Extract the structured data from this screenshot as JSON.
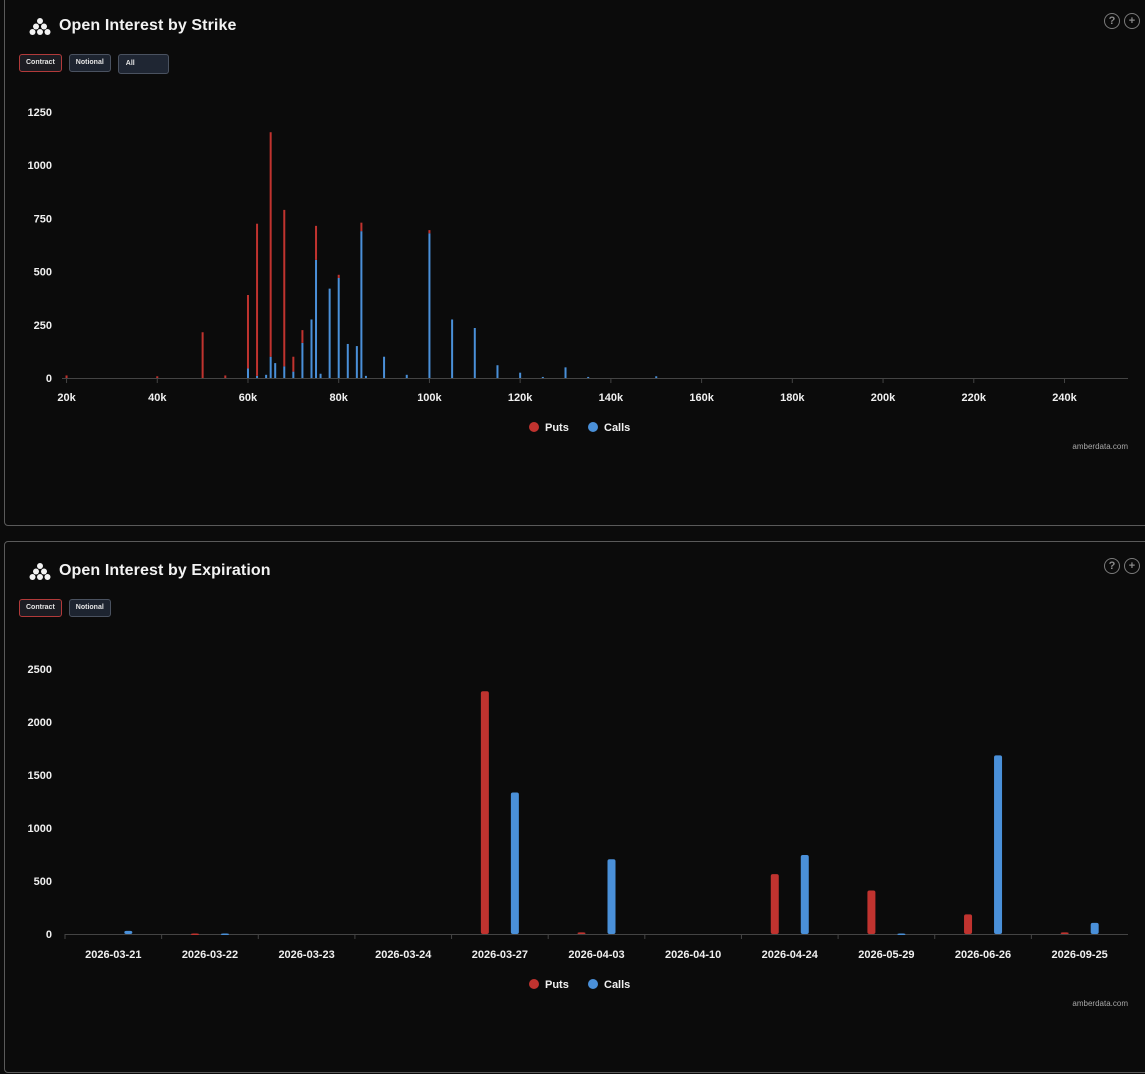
{
  "colors": {
    "puts": "#c0332f",
    "calls": "#4a90d9",
    "axis": "#444444"
  },
  "strike_panel": {
    "title": "Open Interest by Strike",
    "toggles": {
      "contract": "Contract",
      "notional": "Notional",
      "select_value": "All"
    },
    "icons": {
      "help": "?",
      "add": "+"
    },
    "credit": "amberdata.com",
    "legend": {
      "puts": "Puts",
      "calls": "Calls"
    }
  },
  "exp_panel": {
    "title": "Open Interest by Expiration",
    "toggles": {
      "contract": "Contract",
      "notional": "Notional"
    },
    "icons": {
      "help": "?",
      "add": "+"
    },
    "credit": "amberdata.com",
    "legend": {
      "puts": "Puts",
      "calls": "Calls"
    }
  },
  "chart_data": [
    {
      "type": "bar",
      "title": "Open Interest by Strike",
      "xlabel": "",
      "ylabel": "",
      "xlim": [
        19000,
        254000
      ],
      "ylim": [
        0,
        1250
      ],
      "x_ticks": [
        20000,
        40000,
        60000,
        80000,
        100000,
        120000,
        140000,
        160000,
        180000,
        200000,
        220000,
        240000
      ],
      "x_tick_labels": [
        "20k",
        "40k",
        "60k",
        "80k",
        "100k",
        "120k",
        "140k",
        "160k",
        "180k",
        "200k",
        "220k",
        "240k"
      ],
      "y_ticks": [
        0,
        250,
        500,
        750,
        1000,
        1250
      ],
      "stacked": true,
      "strikes": [
        20000,
        40000,
        50000,
        55000,
        60000,
        62000,
        64000,
        65000,
        66000,
        68000,
        70000,
        72000,
        74000,
        75000,
        76000,
        78000,
        80000,
        82000,
        84000,
        85000,
        86000,
        90000,
        95000,
        100000,
        105000,
        110000,
        115000,
        120000,
        125000,
        130000,
        135000,
        150000
      ],
      "series": [
        {
          "name": "Calls",
          "values": [
            0,
            0,
            0,
            0,
            45,
            10,
            15,
            100,
            70,
            55,
            30,
            165,
            275,
            555,
            20,
            420,
            470,
            160,
            150,
            690,
            10,
            100,
            15,
            680,
            275,
            235,
            60,
            25,
            5,
            50,
            5,
            8
          ]
        },
        {
          "name": "Puts",
          "values": [
            12,
            8,
            215,
            12,
            345,
            715,
            0,
            1055,
            0,
            735,
            70,
            60,
            0,
            160,
            0,
            0,
            15,
            0,
            0,
            40,
            0,
            0,
            0,
            15,
            0,
            0,
            0,
            0,
            0,
            0,
            0,
            0
          ]
        }
      ],
      "legend": [
        "Puts",
        "Calls"
      ]
    },
    {
      "type": "bar",
      "title": "Open Interest by Expiration",
      "xlabel": "",
      "ylabel": "",
      "ylim": [
        0,
        2500
      ],
      "y_ticks": [
        0,
        500,
        1000,
        1500,
        2000,
        2500
      ],
      "categories": [
        "2026-03-21",
        "2026-03-22",
        "2026-03-23",
        "2026-03-24",
        "2026-03-27",
        "2026-04-03",
        "2026-04-10",
        "2026-04-24",
        "2026-05-29",
        "2026-06-26",
        "2026-09-25"
      ],
      "series": [
        {
          "name": "Puts",
          "values": [
            0,
            5,
            0,
            0,
            2290,
            15,
            0,
            565,
            410,
            185,
            15
          ]
        },
        {
          "name": "Calls",
          "values": [
            30,
            5,
            0,
            0,
            1335,
            705,
            0,
            745,
            5,
            1685,
            105
          ]
        }
      ],
      "legend": [
        "Puts",
        "Calls"
      ]
    }
  ]
}
